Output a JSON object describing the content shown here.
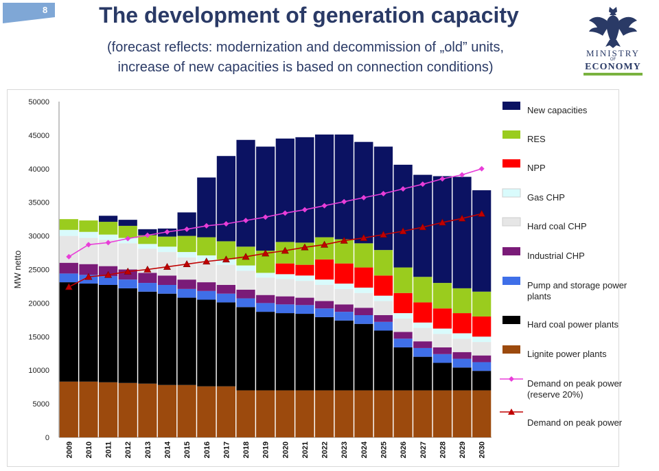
{
  "slide_number": "8",
  "title": "The development of generation capacity",
  "subtitle_line1": "(forecast reflects: modernization and decommission of „old” units,",
  "subtitle_line2": "increase of new capacities is based on connection conditions)",
  "logo": {
    "line1": "MINISTRY",
    "line2": "OF",
    "line3": "ECONOMY"
  },
  "chart_data": {
    "type": "bar",
    "stacked": true,
    "ylabel": "MW netto",
    "ylim": [
      0,
      50000
    ],
    "yticks": [
      0,
      5000,
      10000,
      15000,
      20000,
      25000,
      30000,
      35000,
      40000,
      45000,
      50000
    ],
    "yticklabels": [
      "0",
      "5000",
      "10000",
      "15000",
      "20000",
      "25000",
      "30000",
      "35000",
      "40000",
      "45000",
      "50000"
    ],
    "categories": [
      "2009",
      "2010",
      "2011",
      "2012",
      "2013",
      "2014",
      "2015",
      "2016",
      "2017",
      "2018",
      "2019",
      "2020",
      "2021",
      "2022",
      "2023",
      "2024",
      "2025",
      "2026",
      "2027",
      "2028",
      "2029",
      "2030"
    ],
    "series": [
      {
        "name": "Lignite power plants",
        "color": "#9c4a0d",
        "values": [
          8300,
          8300,
          8200,
          8100,
          8000,
          7800,
          7800,
          7600,
          7600,
          7000,
          7000,
          7000,
          7000,
          7000,
          7000,
          7000,
          7000,
          7000,
          7000,
          7000,
          7000,
          7000
        ]
      },
      {
        "name": "Hard coal power plants",
        "color": "#000000",
        "values": [
          14800,
          14600,
          14500,
          14100,
          13700,
          13600,
          13000,
          12900,
          12500,
          12400,
          11700,
          11500,
          11400,
          10900,
          10400,
          9900,
          8900,
          6400,
          5000,
          4100,
          3400,
          2900
        ]
      },
      {
        "name": "Pump and storage power plants",
        "color": "#3f6fe8",
        "values": [
          1300,
          1300,
          1300,
          1300,
          1300,
          1300,
          1300,
          1300,
          1300,
          1300,
          1300,
          1300,
          1300,
          1300,
          1300,
          1300,
          1300,
          1300,
          1300,
          1300,
          1300,
          1300
        ]
      },
      {
        "name": "Industrial CHP",
        "color": "#7a1b78",
        "values": [
          1600,
          1600,
          1500,
          1500,
          1500,
          1400,
          1400,
          1300,
          1300,
          1300,
          1200,
          1200,
          1100,
          1100,
          1100,
          1100,
          1000,
          1000,
          1000,
          1000,
          1000,
          1000
        ]
      },
      {
        "name": "Hard coal CHP",
        "color": "#e6e6e6",
        "values": [
          4000,
          3900,
          3900,
          3900,
          3600,
          3500,
          3300,
          3200,
          3000,
          2800,
          2600,
          2600,
          2500,
          2400,
          2300,
          2200,
          2100,
          2000,
          2000,
          2000,
          2000,
          2000
        ]
      },
      {
        "name": "Gas CHP",
        "color": "#d9fbfc",
        "values": [
          900,
          900,
          800,
          800,
          700,
          800,
          800,
          800,
          800,
          800,
          700,
          700,
          800,
          800,
          800,
          800,
          800,
          800,
          800,
          800,
          800,
          800
        ]
      },
      {
        "name": "NPP",
        "color": "#ff0000",
        "values": [
          0,
          0,
          0,
          0,
          0,
          0,
          0,
          0,
          0,
          0,
          0,
          1600,
          1600,
          3000,
          3000,
          3000,
          3000,
          3000,
          3000,
          3000,
          3000,
          3000
        ]
      },
      {
        "name": "RES",
        "color": "#9acc1e",
        "values": [
          1600,
          1700,
          1900,
          1800,
          1300,
          1500,
          2400,
          2700,
          2700,
          2800,
          3300,
          3200,
          3300,
          3300,
          3600,
          3600,
          3800,
          3800,
          3800,
          3800,
          3700,
          3700
        ]
      },
      {
        "name": "New capacities",
        "color": "#0b1262",
        "values": [
          0,
          0,
          900,
          900,
          900,
          1200,
          3500,
          8900,
          12700,
          15900,
          15500,
          15400,
          15700,
          15300,
          15600,
          15100,
          15400,
          15300,
          15200,
          15900,
          16600,
          15100
        ]
      }
    ],
    "lines": [
      {
        "name": "Demand on peak power (reserve 20%)",
        "color": "#e83dd8",
        "marker": "diamond",
        "values": [
          26900,
          28700,
          29000,
          29600,
          30100,
          30600,
          31000,
          31500,
          31800,
          32300,
          32800,
          33400,
          33900,
          34500,
          35100,
          35700,
          36300,
          37000,
          37700,
          38500,
          39100,
          40000
        ]
      },
      {
        "name": "Demand on peak power",
        "color": "#c00000",
        "marker": "triangle",
        "values": [
          22400,
          23900,
          24200,
          24700,
          25000,
          25400,
          25800,
          26200,
          26500,
          26900,
          27400,
          27800,
          28300,
          28700,
          29300,
          29700,
          30200,
          30700,
          31300,
          32000,
          32600,
          33300
        ]
      }
    ],
    "legend_position": "right",
    "legend": [
      {
        "label": "New capacities",
        "color": "#0b1262",
        "kind": "box"
      },
      {
        "label": "RES",
        "color": "#9acc1e",
        "kind": "box"
      },
      {
        "label": "NPP",
        "color": "#ff0000",
        "kind": "box"
      },
      {
        "label": "Gas CHP",
        "color": "#d9fbfc",
        "kind": "box"
      },
      {
        "label": "Hard coal CHP",
        "color": "#e6e6e6",
        "kind": "box"
      },
      {
        "label": "Industrial CHP",
        "color": "#7a1b78",
        "kind": "box"
      },
      {
        "label": "Pump and storage power plants",
        "color": "#3f6fe8",
        "kind": "box"
      },
      {
        "label": "Hard coal power plants",
        "color": "#000000",
        "kind": "box"
      },
      {
        "label": "Lignite power plants",
        "color": "#9c4a0d",
        "kind": "box"
      },
      {
        "label": "Demand on peak power (reserve 20%)",
        "color": "#e83dd8",
        "kind": "diamond"
      },
      {
        "label": "Demand on peak power",
        "color": "#c00000",
        "kind": "triangle"
      }
    ]
  }
}
